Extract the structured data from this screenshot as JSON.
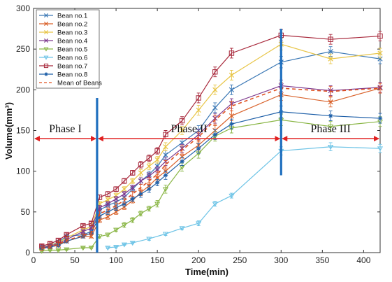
{
  "chart_data": {
    "type": "line",
    "title": "",
    "xlabel": "Time(min)",
    "ylabel": "Volume(mm³)",
    "xlim": [
      0,
      420
    ],
    "ylim": [
      0,
      300
    ],
    "xticks": [
      0,
      50,
      100,
      150,
      200,
      250,
      300,
      350,
      400
    ],
    "yticks": [
      0,
      50,
      100,
      150,
      200,
      250,
      300
    ],
    "grid": false,
    "legend": "top-left",
    "series": [
      {
        "name": "Bean no.1",
        "color": "#3b78b5",
        "marker": "x",
        "dash": "",
        "x": [
          10,
          20,
          30,
          40,
          60,
          70,
          80,
          90,
          100,
          110,
          120,
          130,
          140,
          150,
          160,
          180,
          200,
          220,
          240,
          300,
          360,
          420
        ],
        "y": [
          7,
          9,
          13,
          20,
          22,
          26,
          52,
          58,
          62,
          68,
          78,
          88,
          96,
          106,
          120,
          135,
          150,
          178,
          200,
          234,
          247,
          238
        ],
        "err": [
          2,
          2,
          2,
          2,
          2,
          2,
          3,
          3,
          3,
          3,
          3,
          4,
          4,
          4,
          5,
          5,
          6,
          6,
          6,
          7,
          6,
          6
        ]
      },
      {
        "name": "Bean no.2",
        "color": "#d9622b",
        "marker": "x",
        "dash": "",
        "x": [
          10,
          20,
          30,
          40,
          60,
          70,
          80,
          90,
          100,
          110,
          120,
          130,
          140,
          150,
          160,
          180,
          200,
          220,
          240,
          300,
          360,
          420
        ],
        "y": [
          5,
          7,
          9,
          14,
          20,
          20,
          40,
          44,
          50,
          56,
          64,
          74,
          82,
          92,
          100,
          118,
          132,
          150,
          168,
          194,
          185,
          202
        ],
        "err": [
          2,
          2,
          2,
          2,
          2,
          2,
          3,
          3,
          3,
          3,
          3,
          4,
          4,
          4,
          5,
          5,
          6,
          6,
          6,
          7,
          6,
          6
        ]
      },
      {
        "name": "Bean no.3",
        "color": "#e8c547",
        "marker": "x",
        "dash": "",
        "x": [
          10,
          20,
          30,
          40,
          60,
          70,
          80,
          90,
          100,
          110,
          120,
          130,
          140,
          150,
          160,
          180,
          200,
          220,
          240,
          300,
          360,
          420
        ],
        "y": [
          6,
          9,
          12,
          18,
          28,
          32,
          60,
          65,
          70,
          78,
          88,
          98,
          106,
          114,
          130,
          150,
          175,
          200,
          218,
          256,
          238,
          245
        ],
        "err": [
          2,
          2,
          2,
          2,
          2,
          2,
          3,
          3,
          3,
          3,
          3,
          4,
          4,
          4,
          5,
          5,
          6,
          6,
          6,
          7,
          6,
          6
        ]
      },
      {
        "name": "Bean no.4",
        "color": "#7e3a8e",
        "marker": "x",
        "dash": "",
        "x": [
          10,
          20,
          30,
          40,
          60,
          70,
          80,
          90,
          100,
          110,
          120,
          130,
          140,
          150,
          160,
          180,
          200,
          220,
          240,
          300,
          360,
          420
        ],
        "y": [
          6,
          8,
          11,
          16,
          26,
          30,
          55,
          60,
          66,
          72,
          80,
          88,
          94,
          102,
          112,
          128,
          145,
          165,
          183,
          205,
          199,
          203
        ],
        "err": [
          2,
          2,
          2,
          2,
          2,
          2,
          3,
          3,
          3,
          3,
          3,
          4,
          4,
          4,
          5,
          5,
          6,
          6,
          6,
          7,
          6,
          6
        ]
      },
      {
        "name": "Bean no.5",
        "color": "#8ab646",
        "marker": "triangle",
        "dash": "",
        "x": [
          10,
          20,
          30,
          40,
          60,
          70,
          80,
          90,
          100,
          110,
          120,
          130,
          140,
          150,
          160,
          180,
          200,
          220,
          240,
          300,
          360,
          420
        ],
        "y": [
          2,
          3,
          3,
          4,
          6,
          6,
          20,
          22,
          28,
          34,
          40,
          48,
          54,
          60,
          78,
          105,
          122,
          143,
          153,
          163,
          155,
          161
        ],
        "err": [
          1,
          1,
          1,
          1,
          1,
          1,
          2,
          2,
          2,
          3,
          3,
          3,
          3,
          4,
          5,
          5,
          6,
          6,
          6,
          7,
          6,
          6
        ]
      },
      {
        "name": "Bean no.6",
        "color": "#6cc3e6",
        "marker": "triangle",
        "dash": "",
        "x": [
          90,
          100,
          110,
          120,
          140,
          160,
          180,
          200,
          220,
          240,
          300,
          360,
          420
        ],
        "y": [
          6,
          7,
          10,
          12,
          17,
          23,
          30,
          36,
          60,
          70,
          125,
          130,
          128
        ],
        "err": [
          1,
          1,
          1,
          1,
          2,
          2,
          2,
          3,
          3,
          3,
          5,
          5,
          5
        ]
      },
      {
        "name": "Bean no.7",
        "color": "#a8283b",
        "marker": "square",
        "dash": "",
        "x": [
          10,
          20,
          30,
          40,
          60,
          70,
          80,
          90,
          100,
          110,
          120,
          130,
          140,
          150,
          160,
          180,
          200,
          220,
          240,
          300,
          360,
          420
        ],
        "y": [
          8,
          11,
          15,
          22,
          33,
          36,
          68,
          72,
          78,
          88,
          98,
          108,
          116,
          125,
          145,
          162,
          190,
          222,
          245,
          267,
          262,
          266
        ],
        "err": [
          2,
          2,
          2,
          2,
          2,
          2,
          3,
          3,
          3,
          3,
          3,
          4,
          4,
          4,
          5,
          5,
          6,
          6,
          6,
          7,
          6,
          6
        ]
      },
      {
        "name": "Bean no.8",
        "color": "#1e5fa8",
        "marker": "star",
        "dash": "",
        "x": [
          10,
          20,
          30,
          40,
          60,
          70,
          80,
          90,
          100,
          110,
          120,
          130,
          140,
          150,
          160,
          180,
          200,
          220,
          240,
          300,
          360,
          420
        ],
        "y": [
          5,
          7,
          9,
          14,
          20,
          24,
          45,
          50,
          55,
          60,
          66,
          72,
          78,
          86,
          95,
          112,
          128,
          145,
          158,
          173,
          168,
          165
        ],
        "err": [
          2,
          2,
          2,
          2,
          2,
          2,
          3,
          3,
          3,
          3,
          3,
          4,
          4,
          4,
          5,
          5,
          6,
          6,
          6,
          7,
          6,
          6
        ]
      },
      {
        "name": "Mean of Beans",
        "color": "#e0501f",
        "marker": "none",
        "dash": "5,4",
        "x": [
          10,
          20,
          30,
          40,
          60,
          70,
          80,
          90,
          100,
          110,
          120,
          130,
          140,
          150,
          160,
          180,
          200,
          220,
          240,
          300,
          360,
          420
        ],
        "y": [
          5,
          7,
          10,
          15,
          21,
          24,
          48,
          52,
          58,
          64,
          72,
          80,
          88,
          96,
          108,
          126,
          142,
          163,
          180,
          202,
          198,
          202
        ],
        "err": [
          2,
          2,
          2,
          2,
          2,
          2,
          3,
          3,
          3,
          3,
          3,
          4,
          4,
          4,
          5,
          5,
          6,
          6,
          6,
          7,
          6,
          6
        ]
      }
    ],
    "phase_lines": [
      {
        "x": 77,
        "y_from": 0,
        "y_to": 190
      },
      {
        "x": 300,
        "y_from": 95,
        "y_to": 275
      }
    ],
    "phases": [
      {
        "label": "Phase I",
        "x_from": 0,
        "x_to": 77,
        "y": 152,
        "arrow_y": 140
      },
      {
        "label": "Phase II",
        "x_from": 77,
        "x_to": 300,
        "y": 152,
        "arrow_y": 140
      },
      {
        "label": "Phase III",
        "x_from": 300,
        "x_to": 420,
        "y": 152,
        "arrow_y": 140
      }
    ],
    "colors": {
      "phase_line": "#1f6fbe",
      "phase_arrow": "#e02020"
    }
  }
}
